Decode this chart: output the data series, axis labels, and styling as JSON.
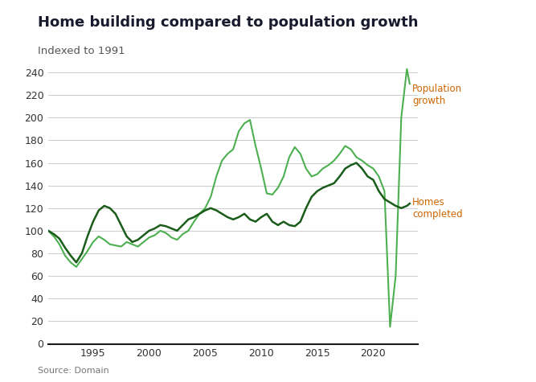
{
  "title": "Home building compared to population growth",
  "subtitle": "Indexed to 1991",
  "source": "Source: Domain",
  "title_color": "#1a1a2e",
  "subtitle_color": "#555555",
  "source_color": "#777777",
  "background_color": "#ffffff",
  "grid_color": "#cccccc",
  "ylim": [
    0,
    250
  ],
  "yticks": [
    0,
    20,
    40,
    60,
    80,
    100,
    120,
    140,
    160,
    180,
    200,
    220,
    240
  ],
  "label_pop": "Population\ngrowth",
  "label_homes": "Homes\ncompleted",
  "label_color_pop": "#cc6600",
  "label_color_homes": "#cc6600",
  "color_pop": "#4caf50",
  "color_homes": "#1a5c1a",
  "pop_x": [
    1991,
    1991.5,
    1992,
    1992.5,
    1993,
    1993.5,
    1994,
    1994.5,
    1995,
    1995.5,
    1996,
    1996.5,
    1997,
    1997.5,
    1998,
    1998.5,
    1999,
    1999.5,
    2000,
    2000.5,
    2001,
    2001.5,
    2002,
    2002.5,
    2003,
    2003.5,
    2004,
    2004.5,
    2005,
    2005.5,
    2006,
    2006.5,
    2007,
    2007.5,
    2008,
    2008.5,
    2009,
    2009.5,
    2010,
    2010.5,
    2011,
    2011.5,
    2012,
    2012.5,
    2013,
    2013.5,
    2014,
    2014.5,
    2015,
    2015.5,
    2016,
    2016.5,
    2017,
    2017.5,
    2018,
    2018.5,
    2019,
    2019.5,
    2020,
    2020.5,
    2021,
    2021.5,
    2022,
    2022.5,
    2023,
    2023.25
  ],
  "pop_y": [
    100,
    95,
    88,
    78,
    72,
    68,
    75,
    82,
    90,
    95,
    92,
    88,
    87,
    86,
    90,
    88,
    86,
    90,
    94,
    96,
    100,
    98,
    94,
    92,
    97,
    100,
    108,
    115,
    120,
    130,
    148,
    162,
    168,
    172,
    188,
    195,
    198,
    175,
    155,
    133,
    132,
    138,
    148,
    165,
    174,
    168,
    155,
    148,
    150,
    155,
    158,
    162,
    168,
    175,
    172,
    165,
    162,
    158,
    155,
    148,
    135,
    15,
    60,
    200,
    243,
    230
  ],
  "homes_x": [
    1991,
    1991.5,
    1992,
    1992.5,
    1993,
    1993.5,
    1994,
    1994.5,
    1995,
    1995.5,
    1996,
    1996.5,
    1997,
    1997.5,
    1998,
    1998.5,
    1999,
    1999.5,
    2000,
    2000.5,
    2001,
    2001.5,
    2002,
    2002.5,
    2003,
    2003.5,
    2004,
    2004.5,
    2005,
    2005.5,
    2006,
    2006.5,
    2007,
    2007.5,
    2008,
    2008.5,
    2009,
    2009.5,
    2010,
    2010.5,
    2011,
    2011.5,
    2012,
    2012.5,
    2013,
    2013.5,
    2014,
    2014.5,
    2015,
    2015.5,
    2016,
    2016.5,
    2017,
    2017.5,
    2018,
    2018.5,
    2019,
    2019.5,
    2020,
    2020.5,
    2021,
    2021.5,
    2022,
    2022.5,
    2023,
    2023.25
  ],
  "homes_y": [
    100,
    97,
    93,
    85,
    78,
    72,
    80,
    95,
    108,
    118,
    122,
    120,
    115,
    105,
    95,
    90,
    92,
    96,
    100,
    102,
    105,
    104,
    102,
    100,
    105,
    110,
    112,
    115,
    118,
    120,
    118,
    115,
    112,
    110,
    112,
    115,
    110,
    108,
    112,
    115,
    108,
    105,
    108,
    105,
    104,
    108,
    120,
    130,
    135,
    138,
    140,
    142,
    148,
    155,
    158,
    160,
    155,
    148,
    145,
    135,
    128,
    125,
    122,
    120,
    122,
    124
  ],
  "xmin": 1991,
  "xmax": 2024
}
